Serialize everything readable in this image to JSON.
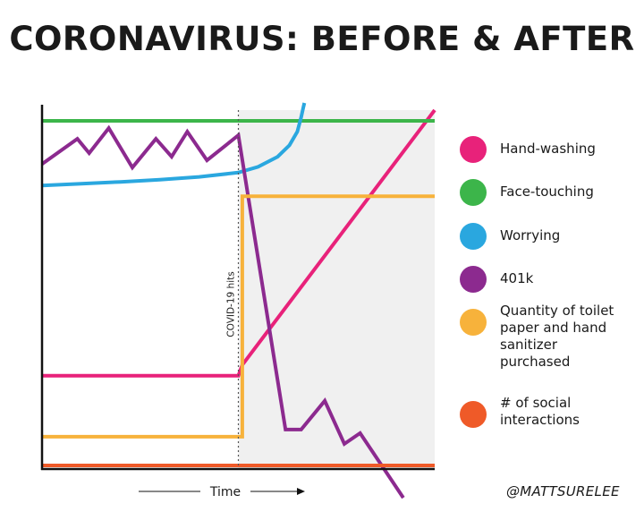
{
  "chart_data": {
    "type": "line",
    "title": "CORONAVIRUS: BEFORE & AFTER",
    "xlabel": "Time",
    "ylabel": "",
    "xlim": [
      0,
      100
    ],
    "ylim": [
      0,
      100
    ],
    "annotation": {
      "text": "COVID-19 hits",
      "x": 50
    },
    "after_region": {
      "from": 50,
      "to": 100,
      "color": "#f0f0f0"
    },
    "series": [
      {
        "name": "Hand-washing",
        "color": "#e8227a",
        "x": [
          0,
          50,
          51,
          100
        ],
        "y": [
          26,
          26,
          29,
          100
        ]
      },
      {
        "name": "Face-touching",
        "color": "#3cb54a",
        "x": [
          0,
          100
        ],
        "y": [
          97,
          97
        ]
      },
      {
        "name": "Worrying",
        "color": "#2aa7df",
        "x": [
          0,
          10,
          20,
          30,
          40,
          50,
          55,
          60,
          63,
          65,
          66,
          66.5,
          66.8
        ],
        "y": [
          79,
          79.5,
          80,
          80.6,
          81.4,
          82.6,
          84.2,
          87,
          90.2,
          94,
          98,
          100.5,
          102
        ]
      },
      {
        "name": "401k",
        "color": "#8c2a8f",
        "x": [
          0,
          9,
          12,
          17,
          23,
          29,
          33,
          37,
          42,
          50,
          62,
          66,
          72,
          77,
          81,
          92
        ],
        "y": [
          85,
          92,
          88,
          95,
          84,
          92,
          87,
          94,
          86,
          93,
          11,
          11,
          19,
          7,
          10,
          -8
        ]
      },
      {
        "name": "Quantity of toilet paper and hand sanitizer purchased",
        "color": "#f7b23b",
        "x": [
          0,
          50,
          51,
          51,
          100
        ],
        "y": [
          9,
          9,
          9,
          76,
          76
        ]
      },
      {
        "name": "# of social interactions",
        "color": "#ef5a28",
        "x": [
          0,
          100
        ],
        "y": [
          1,
          1
        ]
      }
    ]
  },
  "credit": "@MATTSURELEE"
}
